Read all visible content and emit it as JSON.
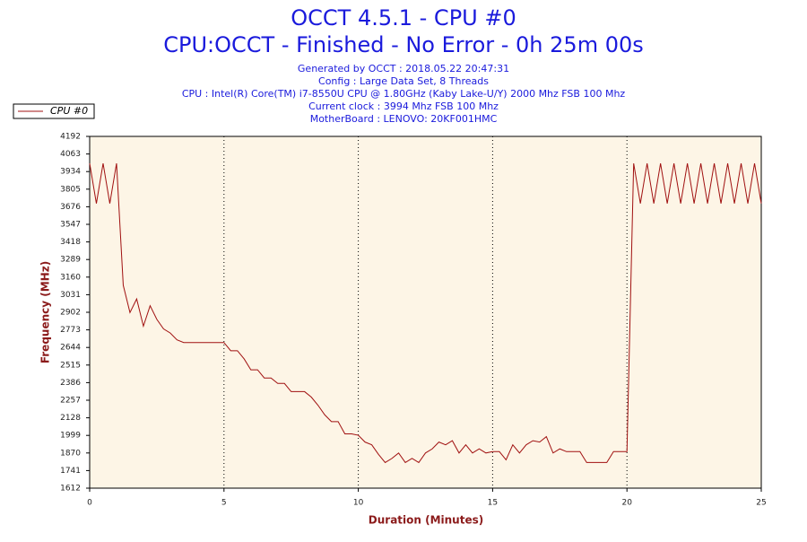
{
  "chart_data": {
    "type": "line",
    "title": "OCCT 4.5.1 - CPU #0",
    "subtitle": "CPU:OCCT - Finished - No Error - 0h 25m 00s",
    "info": [
      "Generated by OCCT : 2018.05.22 20:47:31",
      "Config : Large Data Set, 8 Threads",
      "CPU : Intel(R) Core(TM) i7-8550U CPU @ 1.80GHz (Kaby Lake-U/Y) 2000 Mhz FSB 100 Mhz",
      "Current clock : 3994 Mhz FSB 100 Mhz",
      "MotherBoard : LENOVO: 20KF001HMC"
    ],
    "x_label": "Duration (Minutes)",
    "y_label": "Frequency (MHz)",
    "xlim": [
      0,
      25
    ],
    "xticks": [
      0,
      5,
      10,
      15,
      20,
      25
    ],
    "ylim": [
      1612,
      4192
    ],
    "yticks": [
      1612,
      1741,
      1870,
      1999,
      2128,
      2257,
      2386,
      2515,
      2644,
      2773,
      2902,
      3031,
      3160,
      3289,
      3418,
      3547,
      3676,
      3805,
      3934,
      4063,
      4192
    ],
    "grid": true,
    "legend": "top-left",
    "x": [
      0,
      0.25,
      0.5,
      0.75,
      1,
      1.25,
      1.5,
      1.75,
      2,
      2.25,
      2.5,
      2.75,
      3,
      3.25,
      3.5,
      3.75,
      4,
      4.25,
      4.5,
      4.75,
      5,
      5.25,
      5.5,
      5.75,
      6,
      6.25,
      6.5,
      6.75,
      7,
      7.25,
      7.5,
      7.75,
      8,
      8.25,
      8.5,
      8.75,
      9,
      9.25,
      9.5,
      9.75,
      10,
      10.25,
      10.5,
      10.75,
      11,
      11.25,
      11.5,
      11.75,
      12,
      12.25,
      12.5,
      12.75,
      13,
      13.25,
      13.5,
      13.75,
      14,
      14.25,
      14.5,
      14.75,
      15,
      15.25,
      15.5,
      15.75,
      16,
      16.25,
      16.5,
      16.75,
      17,
      17.25,
      17.5,
      17.75,
      18,
      18.25,
      18.5,
      18.75,
      19,
      19.25,
      19.5,
      19.75,
      20,
      20.25,
      20.5,
      20.75,
      21,
      21.25,
      21.5,
      21.75,
      22,
      22.25,
      22.5,
      22.75,
      23,
      23.25,
      23.5,
      23.75,
      24,
      24.25,
      24.5,
      24.75,
      25
    ],
    "series": [
      {
        "name": "CPU #0",
        "color": "#a01010",
        "values": [
          3994,
          3700,
          3994,
          3700,
          3994,
          3100,
          2900,
          3000,
          2800,
          2950,
          2850,
          2780,
          2750,
          2700,
          2680,
          2680,
          2680,
          2680,
          2680,
          2680,
          2680,
          2620,
          2620,
          2560,
          2480,
          2480,
          2420,
          2420,
          2380,
          2380,
          2320,
          2320,
          2320,
          2280,
          2220,
          2150,
          2100,
          2100,
          2010,
          2010,
          2000,
          1950,
          1930,
          1860,
          1800,
          1830,
          1870,
          1800,
          1830,
          1800,
          1870,
          1900,
          1950,
          1930,
          1960,
          1870,
          1930,
          1870,
          1900,
          1870,
          1880,
          1880,
          1820,
          1930,
          1870,
          1930,
          1960,
          1950,
          1990,
          1870,
          1900,
          1880,
          1880,
          1880,
          1800,
          1800,
          1800,
          1800,
          1880,
          1880,
          1880,
          3994,
          3700,
          3994,
          3700,
          3994,
          3700,
          3994,
          3700,
          3994,
          3700,
          3994,
          3700,
          3994,
          3700,
          3994,
          3700,
          3994,
          3700,
          3994,
          3700
        ]
      }
    ]
  }
}
